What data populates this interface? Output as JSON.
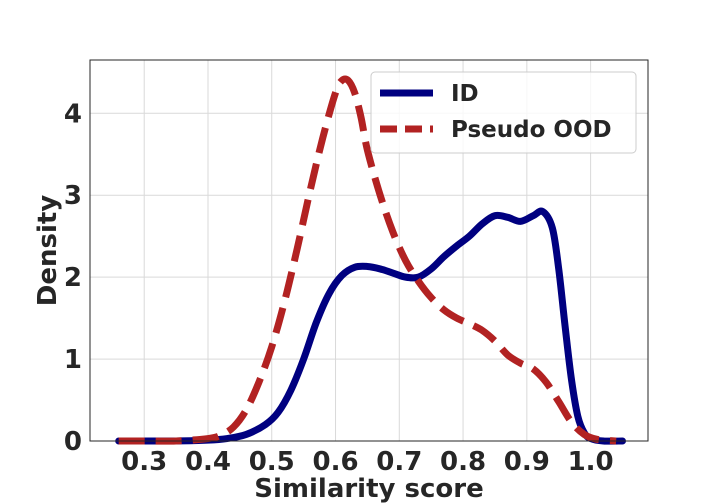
{
  "chart_data": {
    "type": "line",
    "title": "",
    "xlabel": "Similarity score",
    "ylabel": "Density",
    "xlim": [
      0.215,
      1.09
    ],
    "ylim": [
      0,
      4.65
    ],
    "xticks": [
      0.3,
      0.4,
      0.5,
      0.6,
      0.7,
      0.8,
      0.9,
      1.0
    ],
    "xtick_labels": [
      "0.3",
      "0.4",
      "0.5",
      "0.6",
      "0.7",
      "0.8",
      "0.9",
      "1.0"
    ],
    "yticks": [
      0,
      1,
      2,
      3,
      4
    ],
    "ytick_labels": [
      "0",
      "1",
      "2",
      "3",
      "4"
    ],
    "grid": true,
    "legend_position": "top-right",
    "series": [
      {
        "name": "ID",
        "color": "#000080",
        "style": "solid",
        "x": [
          0.26,
          0.3,
          0.35,
          0.4,
          0.43,
          0.46,
          0.49,
          0.51,
          0.53,
          0.55,
          0.57,
          0.59,
          0.61,
          0.63,
          0.65,
          0.67,
          0.69,
          0.71,
          0.73,
          0.75,
          0.77,
          0.79,
          0.81,
          0.83,
          0.85,
          0.87,
          0.89,
          0.91,
          0.925,
          0.94,
          0.95,
          0.96,
          0.97,
          0.98,
          0.99,
          1.0,
          1.02,
          1.05
        ],
        "y": [
          0.0,
          0.0,
          0.0,
          0.01,
          0.03,
          0.08,
          0.2,
          0.35,
          0.62,
          1.0,
          1.45,
          1.8,
          2.02,
          2.12,
          2.13,
          2.1,
          2.05,
          2.0,
          2.0,
          2.1,
          2.25,
          2.38,
          2.5,
          2.65,
          2.75,
          2.73,
          2.68,
          2.75,
          2.8,
          2.6,
          2.1,
          1.4,
          0.75,
          0.3,
          0.1,
          0.03,
          0.0,
          0.0
        ]
      },
      {
        "name": "Pseudo OOD",
        "color": "#b22222",
        "style": "dashed",
        "x": [
          0.26,
          0.3,
          0.35,
          0.4,
          0.42,
          0.44,
          0.46,
          0.48,
          0.5,
          0.52,
          0.54,
          0.56,
          0.58,
          0.6,
          0.61,
          0.62,
          0.63,
          0.64,
          0.65,
          0.67,
          0.69,
          0.71,
          0.73,
          0.75,
          0.77,
          0.79,
          0.81,
          0.83,
          0.85,
          0.87,
          0.89,
          0.91,
          0.93,
          0.95,
          0.97,
          0.99,
          1.01,
          1.04
        ],
        "y": [
          0.0,
          0.0,
          0.0,
          0.03,
          0.07,
          0.17,
          0.38,
          0.72,
          1.15,
          1.7,
          2.35,
          3.05,
          3.7,
          4.25,
          4.4,
          4.4,
          4.25,
          3.95,
          3.55,
          3.0,
          2.55,
          2.2,
          1.95,
          1.75,
          1.6,
          1.5,
          1.43,
          1.35,
          1.22,
          1.05,
          0.95,
          0.88,
          0.72,
          0.48,
          0.23,
          0.08,
          0.02,
          0.0
        ]
      }
    ]
  }
}
